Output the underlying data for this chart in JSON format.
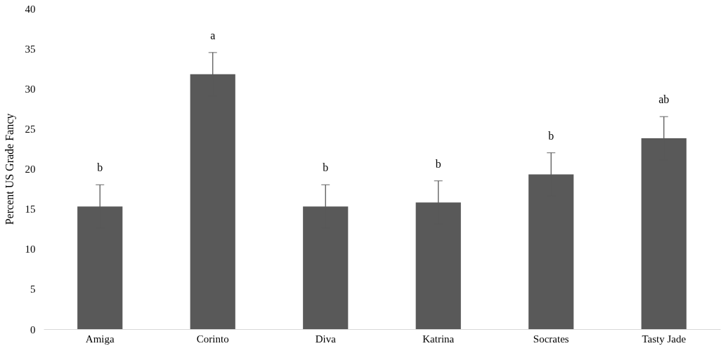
{
  "chart_data": {
    "type": "bar",
    "ylabel": "Percent US Grade Fancy",
    "categories": [
      "Amiga",
      "Corinto",
      "Diva",
      "Katrina",
      "Socrates",
      "Tasty Jade"
    ],
    "values": [
      15.3,
      31.8,
      15.3,
      15.8,
      19.3,
      23.8
    ],
    "errors": [
      2.7,
      2.7,
      2.7,
      2.7,
      2.7,
      2.7
    ],
    "color": "#595959",
    "ylim": [
      0,
      40
    ],
    "yticks": [
      0,
      5,
      10,
      15,
      20,
      25,
      30,
      35,
      40
    ],
    "grid": false,
    "annotations": [
      "b",
      "a",
      "b",
      "b",
      "b",
      "ab"
    ]
  }
}
